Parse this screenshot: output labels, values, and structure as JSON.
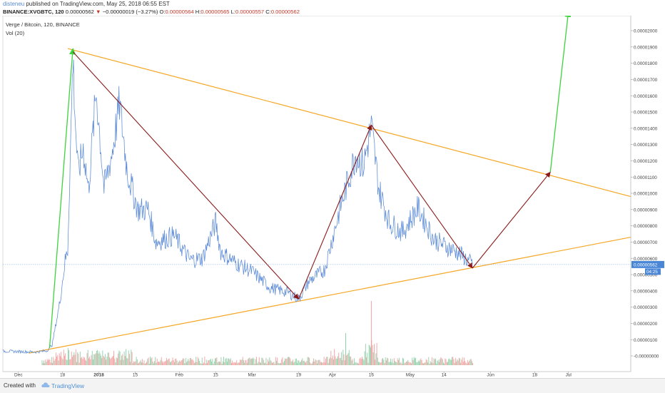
{
  "header": {
    "author": "disteneu",
    "publish_text": " published on TradingView.com, May 25, 2018 06:55 EST",
    "symbol": "BINANCE:XVGBTC, 120",
    "last_value": "0.00000562",
    "change": "−0.00000019 (−3.27%)",
    "o_label": "O:",
    "o_value": "0.00000564",
    "h_label": "H:",
    "h_value": "0.00000565",
    "l_label": "L:",
    "l_value": "0.00000557",
    "c_label": "C:",
    "c_value": "0.00000562"
  },
  "footer": {
    "created_with": "Created with",
    "brand": "TradingView"
  },
  "chart_data": {
    "type": "line",
    "legend": [
      "Verge / Bitcoin, 120, BINANCE",
      "Vol (20)"
    ],
    "x_ticks": [
      "Dec",
      "18",
      "2018",
      "15",
      "Feb",
      "15",
      "Mar",
      "19",
      "Apr",
      "16",
      "May",
      "14",
      "Jun",
      "18",
      "Jul"
    ],
    "y_ticks": [
      "0.00002000",
      "0.00001900",
      "0.00001800",
      "0.00001700",
      "0.00001600",
      "0.00001500",
      "0.00001400",
      "0.00001300",
      "0.00001200",
      "0.00001100",
      "0.00001000",
      "0.00000900",
      "0.00000800",
      "0.00000700",
      "0.00000600",
      "0.00000500",
      "0.00000400",
      "0.00000300",
      "0.00000200",
      "0.00000100",
      "-0.00000000"
    ],
    "ylim": [
      0,
      2.04e-05
    ],
    "last_price_label": "0.00000562",
    "countdown_label": "04:25",
    "colors": {
      "price": "#5b8ad6",
      "trendline": "#f5a623",
      "wave_arrow": "#8b1a1a",
      "green_arrow": "#3cd43c",
      "vol_up": "#8fd0a8",
      "vol_down": "#f2a0a0",
      "last_price_bg": "#4a86d6"
    },
    "price_series": [
      {
        "x": "2017-11-25",
        "y": 2.9e-07
      },
      {
        "x": "2017-12-08",
        "y": 2.4e-07
      },
      {
        "x": "2017-12-12",
        "y": 3.2e-07
      },
      {
        "x": "2017-12-14",
        "y": 6.8e-07
      },
      {
        "x": "2017-12-17",
        "y": 3.35e-06
      },
      {
        "x": "2017-12-19",
        "y": 5.85e-06
      },
      {
        "x": "2017-12-20",
        "y": 6.5e-06
      },
      {
        "x": "2017-12-22",
        "y": 1.83e-05
      },
      {
        "x": "2017-12-23",
        "y": 1.42e-05
      },
      {
        "x": "2017-12-24",
        "y": 1.12e-05
      },
      {
        "x": "2017-12-26",
        "y": 1.28e-05
      },
      {
        "x": "2017-12-28",
        "y": 1.02e-05
      },
      {
        "x": "2017-12-31",
        "y": 1.63e-05
      },
      {
        "x": "2018-01-03",
        "y": 1.03e-05
      },
      {
        "x": "2018-01-06",
        "y": 1.24e-05
      },
      {
        "x": "2018-01-09",
        "y": 1.55e-05
      },
      {
        "x": "2018-01-12",
        "y": 1.13e-05
      },
      {
        "x": "2018-01-16",
        "y": 9e-06
      },
      {
        "x": "2018-01-20",
        "y": 9e-06
      },
      {
        "x": "2018-01-23",
        "y": 7e-06
      },
      {
        "x": "2018-01-30",
        "y": 7.4e-06
      },
      {
        "x": "2018-02-05",
        "y": 5.9e-06
      },
      {
        "x": "2018-02-10",
        "y": 6e-06
      },
      {
        "x": "2018-02-15",
        "y": 8.2e-06
      },
      {
        "x": "2018-02-17",
        "y": 6.4e-06
      },
      {
        "x": "2018-02-23",
        "y": 5.7e-06
      },
      {
        "x": "2018-03-01",
        "y": 5.2e-06
      },
      {
        "x": "2018-03-08",
        "y": 4.2e-06
      },
      {
        "x": "2018-03-15",
        "y": 3.9e-06
      },
      {
        "x": "2018-03-19",
        "y": 3.5e-06
      },
      {
        "x": "2018-03-23",
        "y": 4.6e-06
      },
      {
        "x": "2018-03-29",
        "y": 5.3e-06
      },
      {
        "x": "2018-04-04",
        "y": 9.1e-06
      },
      {
        "x": "2018-04-10",
        "y": 1.24e-05
      },
      {
        "x": "2018-04-13",
        "y": 1.17e-05
      },
      {
        "x": "2018-04-16",
        "y": 1.41e-05
      },
      {
        "x": "2018-04-19",
        "y": 1.02e-05
      },
      {
        "x": "2018-04-23",
        "y": 8.2e-06
      },
      {
        "x": "2018-04-28",
        "y": 7.6e-06
      },
      {
        "x": "2018-05-04",
        "y": 9.1e-06
      },
      {
        "x": "2018-05-10",
        "y": 7.2e-06
      },
      {
        "x": "2018-05-14",
        "y": 6.8e-06
      },
      {
        "x": "2018-05-20",
        "y": 6.3e-06
      },
      {
        "x": "2018-05-25",
        "y": 5.62e-06
      }
    ],
    "trendlines": [
      {
        "name": "upper",
        "from": {
          "x": "2017-12-20",
          "y": 1.89e-05
        },
        "to": {
          "x": "2018-07-25",
          "y": 9.8e-06
        }
      },
      {
        "name": "lower",
        "from": {
          "x": "2017-12-05",
          "y": 1.7e-07
        },
        "to": {
          "x": "2018-07-25",
          "y": 7.3e-06
        }
      }
    ],
    "wave_arrows": [
      {
        "from": {
          "x": "2017-12-22",
          "y": 1.87e-05
        },
        "to": {
          "x": "2018-03-19",
          "y": 3.5e-06
        }
      },
      {
        "from": {
          "x": "2018-03-19",
          "y": 3.5e-06
        },
        "to": {
          "x": "2018-04-16",
          "y": 1.42e-05
        }
      },
      {
        "from": {
          "x": "2018-04-16",
          "y": 1.42e-05
        },
        "to": {
          "x": "2018-05-25",
          "y": 5.4e-06
        }
      },
      {
        "from": {
          "x": "2018-05-25",
          "y": 5.4e-06
        },
        "to": {
          "x": "2018-06-24",
          "y": 1.13e-05
        }
      }
    ],
    "green_arrows": [
      {
        "from": {
          "x": "2017-12-13",
          "y": 4.8e-07
        },
        "to": {
          "x": "2017-12-22",
          "y": 1.89e-05
        }
      },
      {
        "from": {
          "x": "2018-06-24",
          "y": 1.13e-05
        },
        "to": {
          "x": "2018-07-01",
          "y": 2.12e-05
        }
      }
    ],
    "x_start": "2017-11-25",
    "x_end": "2018-07-25"
  }
}
